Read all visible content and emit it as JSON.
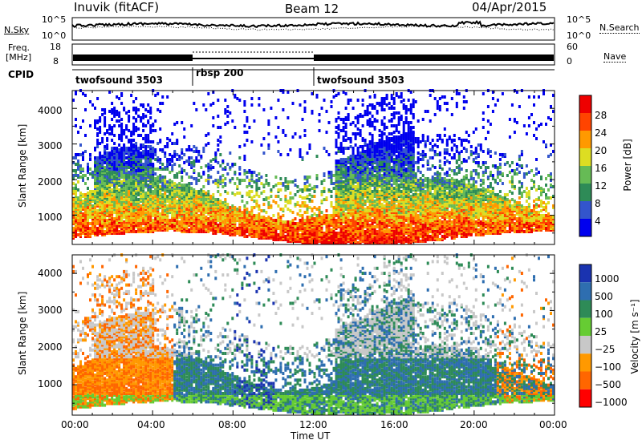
{
  "header": {
    "station": "Inuvik (fitACF)",
    "beam": "Beam 12",
    "date": "04/Apr/2015"
  },
  "top_panel": {
    "left_label": "N.Sky",
    "right_label": "N.Search",
    "left_ticks": [
      "10^5",
      "10^0"
    ],
    "right_ticks": [
      "10^5",
      "10^0"
    ]
  },
  "freq_panel": {
    "left_label_1": "Freq.",
    "left_label_2": "[MHz]",
    "left_ticks": [
      "18",
      "8"
    ],
    "right_label": "Nave",
    "right_ticks": [
      "60",
      "0"
    ]
  },
  "cpid_panel": {
    "label": "CPID",
    "segments": [
      {
        "name": "twofsound 3503",
        "start": 0,
        "end": 6
      },
      {
        "name": "rbsp 200",
        "start": 6,
        "end": 12
      },
      {
        "name": "twofsound 3503",
        "start": 12,
        "end": 24
      }
    ]
  },
  "chart_data": [
    {
      "type": "heatmap",
      "title": "",
      "ylabel": "Slant Range [km]",
      "xlabel": "",
      "x_ticks": [
        "00:00",
        "04:00",
        "08:00",
        "12:00",
        "16:00",
        "20:00",
        "00:00"
      ],
      "y_ticks": [
        "1000",
        "2000",
        "3000",
        "4000"
      ],
      "xlim": [
        0,
        24
      ],
      "ylim": [
        180,
        4500
      ],
      "colorbar": {
        "label": "Power [dB]",
        "range": [
          0,
          32
        ],
        "ticks": [
          "4",
          "8",
          "12",
          "16",
          "20",
          "24",
          "28"
        ],
        "colors": [
          "#0000ee",
          "#3355cc",
          "#2e8b57",
          "#66bb55",
          "#dddd22",
          "#ff9900",
          "#ff4400",
          "#ee0000"
        ]
      }
    },
    {
      "type": "heatmap",
      "title": "",
      "ylabel": "Slant Range [km]",
      "xlabel": "Time UT",
      "x_ticks": [
        "00:00",
        "04:00",
        "08:00",
        "12:00",
        "16:00",
        "20:00",
        "00:00"
      ],
      "y_ticks": [
        "1000",
        "2000",
        "3000",
        "4000"
      ],
      "xlim": [
        0,
        24
      ],
      "ylim": [
        180,
        4500
      ],
      "colorbar": {
        "label": "Velocity [m s⁻¹]",
        "ticks": [
          "1000",
          "500",
          "100",
          "25",
          "−25",
          "−100",
          "−500",
          "−1000"
        ],
        "colors": [
          "#1a33b0",
          "#2e6eb0",
          "#2e8b57",
          "#66cc33",
          "#c8c8c8",
          "#ff9900",
          "#ff6600",
          "#ff0000"
        ]
      }
    }
  ]
}
